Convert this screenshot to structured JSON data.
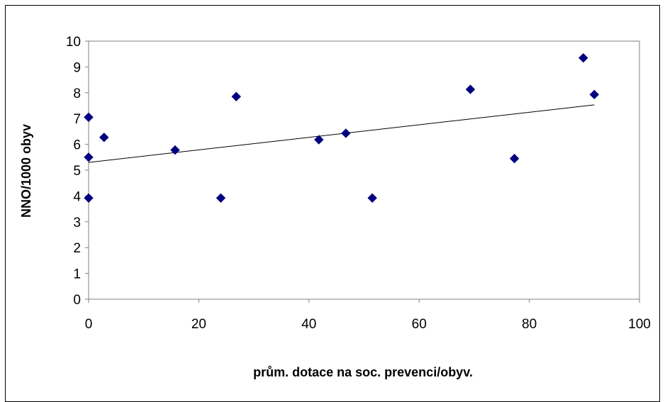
{
  "chart_data": {
    "type": "scatter",
    "title": "",
    "xlabel": "prům. dotace na soc. prevenci/obyv.",
    "ylabel": "NNO/1000 obyv",
    "xlim": [
      0,
      100
    ],
    "ylim": [
      0,
      10
    ],
    "xticks": [
      0,
      20,
      40,
      60,
      80,
      100
    ],
    "yticks": [
      0,
      1,
      2,
      3,
      4,
      5,
      6,
      7,
      8,
      9,
      10
    ],
    "grid": false,
    "legend": "none",
    "marker": "diamond",
    "marker_color": "#000080",
    "points": [
      {
        "x": 0,
        "y": 7.05
      },
      {
        "x": 0,
        "y": 5.5
      },
      {
        "x": 0,
        "y": 3.92
      },
      {
        "x": 2.8,
        "y": 6.27
      },
      {
        "x": 15.7,
        "y": 5.78
      },
      {
        "x": 24.0,
        "y": 3.92
      },
      {
        "x": 26.8,
        "y": 7.85
      },
      {
        "x": 41.8,
        "y": 6.18
      },
      {
        "x": 46.7,
        "y": 6.43
      },
      {
        "x": 51.5,
        "y": 3.92
      },
      {
        "x": 69.3,
        "y": 8.13
      },
      {
        "x": 77.3,
        "y": 5.45
      },
      {
        "x": 89.8,
        "y": 9.35
      },
      {
        "x": 91.8,
        "y": 7.93
      }
    ],
    "trendline": {
      "type": "linear",
      "color": "#000000",
      "x_start": 0,
      "y_start": 5.3,
      "x_end": 91.8,
      "y_end": 7.53
    }
  }
}
